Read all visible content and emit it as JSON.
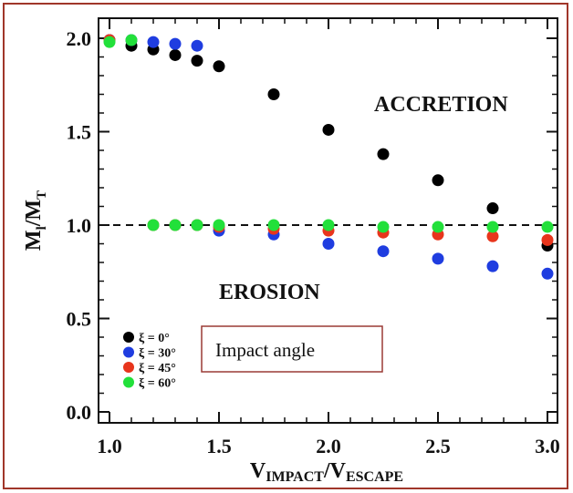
{
  "chart_data": {
    "type": "scatter",
    "xlabel": {
      "main": "V",
      "sub1": "IMPACT",
      "sep": "/V",
      "sub2": "ESCAPE"
    },
    "ylabel": {
      "main": "M",
      "sub1": "l",
      "sep": "/M",
      "sub2": "T"
    },
    "xlim": [
      1.0,
      3.0
    ],
    "ylim": [
      0.0,
      2.0
    ],
    "x_ticks": [
      "1.0",
      "1.5",
      "2.0",
      "2.5",
      "3.0"
    ],
    "y_ticks": [
      "0.0",
      "0.5",
      "1.0",
      "1.5",
      "2.0"
    ],
    "reference_line": {
      "y": 1.0,
      "style": "dashed"
    },
    "annotations": {
      "upper": "ACCRETION",
      "lower": "EROSION",
      "box": "Impact angle"
    },
    "legend_placement": "bottom-left",
    "series": [
      {
        "name": "ξ =  0°",
        "color": "#000000",
        "points": [
          [
            1.0,
            1.99
          ],
          [
            1.1,
            1.96
          ],
          [
            1.2,
            1.94
          ],
          [
            1.3,
            1.91
          ],
          [
            1.4,
            1.88
          ],
          [
            1.5,
            1.85
          ],
          [
            1.75,
            1.7
          ],
          [
            2.0,
            1.51
          ],
          [
            2.25,
            1.38
          ],
          [
            2.5,
            1.24
          ],
          [
            2.75,
            1.09
          ],
          [
            3.0,
            0.89
          ]
        ]
      },
      {
        "name": "ξ = 30°",
        "color": "#1f3de0",
        "points": [
          [
            1.0,
            1.99
          ],
          [
            1.1,
            1.99
          ],
          [
            1.2,
            1.98
          ],
          [
            1.3,
            1.97
          ],
          [
            1.4,
            1.96
          ],
          [
            1.5,
            0.97
          ],
          [
            1.75,
            0.95
          ],
          [
            2.0,
            0.9
          ],
          [
            2.25,
            0.86
          ],
          [
            2.5,
            0.82
          ],
          [
            2.75,
            0.78
          ],
          [
            3.0,
            0.74
          ]
        ]
      },
      {
        "name": "ξ = 45°",
        "color": "#e8351c",
        "points": [
          [
            1.0,
            1.99
          ],
          [
            1.2,
            1.0
          ],
          [
            1.3,
            1.0
          ],
          [
            1.4,
            1.0
          ],
          [
            1.5,
            0.99
          ],
          [
            1.75,
            0.98
          ],
          [
            2.0,
            0.97
          ],
          [
            2.25,
            0.96
          ],
          [
            2.5,
            0.95
          ],
          [
            2.75,
            0.94
          ],
          [
            3.0,
            0.92
          ]
        ]
      },
      {
        "name": "ξ = 60°",
        "color": "#22e03a",
        "points": [
          [
            1.0,
            1.98
          ],
          [
            1.1,
            1.99
          ],
          [
            1.2,
            1.0
          ],
          [
            1.3,
            1.0
          ],
          [
            1.4,
            1.0
          ],
          [
            1.5,
            1.0
          ],
          [
            1.75,
            1.0
          ],
          [
            2.0,
            1.0
          ],
          [
            2.25,
            0.99
          ],
          [
            2.5,
            0.99
          ],
          [
            2.75,
            0.99
          ],
          [
            3.0,
            0.99
          ]
        ]
      }
    ]
  }
}
